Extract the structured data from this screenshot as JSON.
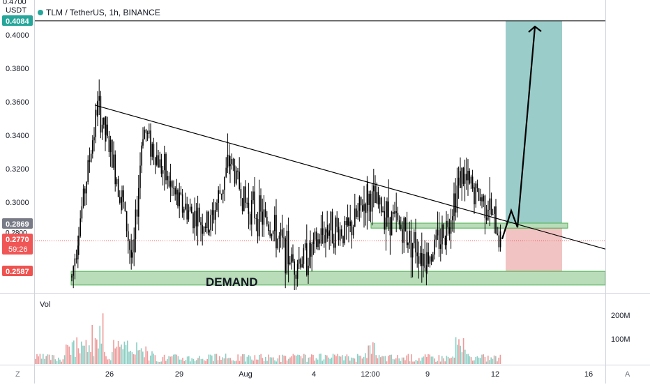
{
  "header": {
    "symbol_title": "TLM / TetherUS, 1h, BINANCE",
    "currency": "USDT",
    "top_cut_label": "0.4700"
  },
  "price_axis": {
    "ticks": [
      "0.4000",
      "0.3800",
      "0.3600",
      "0.3400",
      "0.3200",
      "0.3000"
    ],
    "badges": {
      "target": "0.4084",
      "entry": "0.2869",
      "partial": "0.2800",
      "last": "0.2770",
      "countdown": "59:26",
      "stop": "0.2587"
    }
  },
  "time_axis": {
    "labels": [
      "26",
      "29",
      "Aug",
      "4",
      "12:00",
      "9",
      "12",
      "16"
    ],
    "left_button": "Z",
    "right_button": "A"
  },
  "volume": {
    "label": "Vol",
    "ticks": [
      "200M",
      "100M"
    ]
  },
  "annotations": {
    "demand_label": "DEMAND"
  },
  "colors": {
    "profit_zone": "#8fc7c4",
    "loss_zone": "#f0bcbc",
    "demand_zone": "#b9dcb9",
    "demand_border": "#4caf50",
    "candles": "#000000",
    "vol_up": "#8ccfc4",
    "vol_down": "#ef9a9a",
    "target_badge": "#26a69a",
    "stop_badge": "#ef5350",
    "last_badge": "#f05656",
    "entry_badge": "#787b86"
  },
  "chart_data": {
    "type": "candlestick",
    "title": "TLM / TetherUS, 1h, BINANCE",
    "ylabel": "USDT",
    "ylim": [
      0.255,
      0.47
    ],
    "x_labels": [
      "26",
      "29",
      "Aug",
      "4",
      "12:00",
      "9",
      "12",
      "16"
    ],
    "price_path": [
      {
        "x": "24 Jul",
        "close": 0.255
      },
      {
        "x": "25 Jul",
        "close": 0.285
      },
      {
        "x": "25 Jul",
        "close": 0.357
      },
      {
        "x": "26 Jul",
        "close": 0.34
      },
      {
        "x": "26 Jul",
        "close": 0.303
      },
      {
        "x": "27 Jul",
        "close": 0.262
      },
      {
        "x": "28 Jul",
        "close": 0.345
      },
      {
        "x": "29 Jul",
        "close": 0.3
      },
      {
        "x": "30 Jul",
        "close": 0.285
      },
      {
        "x": "31 Jul",
        "close": 0.325
      },
      {
        "x": "1 Aug",
        "close": 0.3
      },
      {
        "x": "2 Aug",
        "close": 0.287
      },
      {
        "x": "3 Aug",
        "close": 0.264
      },
      {
        "x": "4 Aug",
        "close": 0.269
      },
      {
        "x": "5 Aug",
        "close": 0.285
      },
      {
        "x": "6 Aug",
        "close": 0.282
      },
      {
        "x": "6 Aug 12:00",
        "close": 0.303
      },
      {
        "x": "7 Aug",
        "close": 0.294
      },
      {
        "x": "8 Aug",
        "close": 0.28
      },
      {
        "x": "9 Aug",
        "close": 0.266
      },
      {
        "x": "10 Aug",
        "close": 0.285
      },
      {
        "x": "10 Aug",
        "close": 0.316
      },
      {
        "x": "11 Aug",
        "close": 0.306
      },
      {
        "x": "11 Aug",
        "close": 0.298
      },
      {
        "x": "12 Aug",
        "close": 0.277
      }
    ],
    "volume_axis": {
      "ticks": [
        "100M",
        "200M"
      ]
    },
    "levels": {
      "target": 0.4084,
      "entry": 0.2869,
      "last_price": 0.277,
      "stop": 0.2587
    },
    "demand_zone": {
      "label": "DEMAND",
      "from": 0.2505,
      "to": 0.2587
    },
    "small_zone": {
      "from": 0.2845,
      "to": 0.2875
    },
    "trendline": [
      {
        "x": "25 Jul",
        "y": 0.358
      },
      {
        "x": "16 Aug",
        "y": 0.272
      }
    ],
    "projection": [
      {
        "x": "12 Aug",
        "y": 0.278
      },
      {
        "x": "12 Aug",
        "y": 0.295
      },
      {
        "x": "12 Aug",
        "y": 0.285
      },
      {
        "x": "14 Aug",
        "y": 0.405
      }
    ],
    "grid": false
  }
}
